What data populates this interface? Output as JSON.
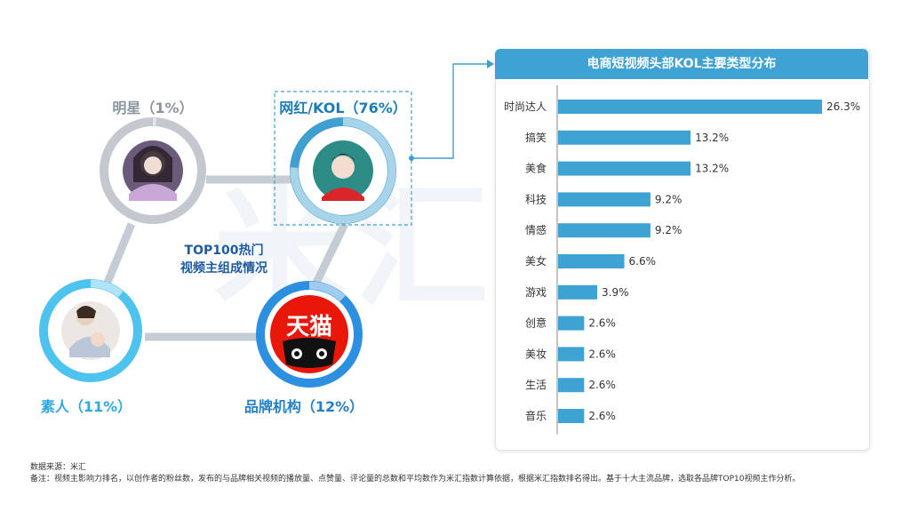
{
  "watermark": "米汇",
  "center_title": {
    "line1": "TOP100热门",
    "line2": "视频主组成情况"
  },
  "nodes": [
    {
      "id": "celebrity",
      "label": "明星（1%）",
      "share": 1,
      "color": "#8c959e",
      "ring": "#c3c9cf",
      "icon": "celebrity-photo"
    },
    {
      "id": "kol",
      "label": "网红/KOL（76%）",
      "share": 76,
      "color": "#1e7db5",
      "ring": "#3e9fd0",
      "icon": "kol-photo"
    },
    {
      "id": "amateur",
      "label": "素人（11%）",
      "share": 11,
      "color": "#2ea8e0",
      "ring": "#4fc3f0",
      "icon": "amateur-photo"
    },
    {
      "id": "brand",
      "label": "品牌机构（12%）",
      "share": 12,
      "color": "#2580c8",
      "ring": "#2d8fe0",
      "icon": "tmall-logo"
    }
  ],
  "tmall_logo_text": "天猫",
  "chart_data": {
    "type": "bar",
    "orientation": "horizontal",
    "title": "电商短视频头部KOL主要类型分布",
    "categories": [
      "时尚达人",
      "搞笑",
      "美食",
      "科技",
      "情感",
      "美女",
      "游戏",
      "创意",
      "美妆",
      "生活",
      "音乐"
    ],
    "values": [
      26.3,
      13.2,
      13.2,
      9.2,
      9.2,
      6.6,
      3.9,
      2.6,
      2.6,
      2.6,
      2.6
    ],
    "value_labels": [
      "26.3%",
      "13.2%",
      "13.2%",
      "9.2%",
      "9.2%",
      "6.6%",
      "3.9%",
      "2.6%",
      "2.6%",
      "2.6%",
      "2.6%"
    ],
    "xlim": [
      0,
      26.3
    ],
    "bar_color": "#3ea3d2",
    "grid": false
  },
  "footer": {
    "source": "数据来源：米汇",
    "note": "备注：视频主影响力排名，以创作者的粉丝数，发布的与品牌相关视频的播放量、点赞量、评论量的总数和平均数作为米汇指数计算依据，根据米汇指数排名得出。基于十大主流品牌，选取各品牌TOP10视频主作分析。"
  }
}
